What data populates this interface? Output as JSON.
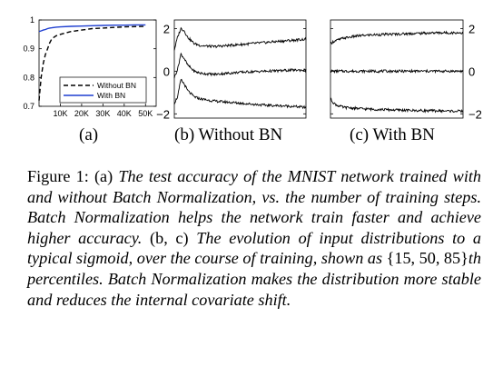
{
  "chart_data": [
    {
      "type": "line",
      "subcaption": "(a)",
      "x": [
        0,
        1000,
        2000,
        3000,
        4000,
        5000,
        6000,
        8000,
        10000,
        15000,
        20000,
        25000,
        30000,
        35000,
        40000,
        45000,
        50000
      ],
      "series": [
        {
          "name": "Without BN",
          "style": "dashed",
          "color": "#000000",
          "values": [
            0.72,
            0.8,
            0.85,
            0.88,
            0.9,
            0.92,
            0.935,
            0.945,
            0.95,
            0.96,
            0.965,
            0.97,
            0.972,
            0.974,
            0.976,
            0.977,
            0.978
          ]
        },
        {
          "name": "With BN",
          "style": "solid",
          "color": "#1f3fd0",
          "values": [
            0.96,
            0.962,
            0.965,
            0.967,
            0.97,
            0.972,
            0.973,
            0.975,
            0.976,
            0.978,
            0.979,
            0.98,
            0.981,
            0.982,
            0.982,
            0.983,
            0.983
          ]
        }
      ],
      "xlim": [
        0,
        55000
      ],
      "ylim": [
        0.7,
        1.0
      ],
      "xticks": [
        10000,
        20000,
        30000,
        40000,
        50000
      ],
      "xtick_labels": [
        "10K",
        "20K",
        "30K",
        "40K",
        "50K"
      ],
      "yticks": [
        0.7,
        0.8,
        0.9,
        1.0
      ],
      "ytick_labels": [
        "0.7",
        "0.8",
        "0.9",
        "1"
      ],
      "legend_position": "bottom-right"
    },
    {
      "type": "line",
      "subcaption": "(b) Without BN",
      "x": [
        0,
        0.5,
        1,
        1.5,
        2,
        3,
        4,
        6,
        8,
        10,
        12,
        14,
        16,
        18,
        20
      ],
      "series": [
        {
          "percentile": "85th",
          "values": [
            1.0,
            1.6,
            2.0,
            1.9,
            1.6,
            1.3,
            1.2,
            1.15,
            1.2,
            1.25,
            1.3,
            1.35,
            1.4,
            1.45,
            1.5
          ]
        },
        {
          "percentile": "50th",
          "values": [
            -0.3,
            0.1,
            0.8,
            0.6,
            0.3,
            0.0,
            -0.1,
            -0.15,
            -0.1,
            -0.05,
            -0.02,
            0.0,
            0.02,
            0.05,
            0.05
          ]
        },
        {
          "percentile": "15th",
          "values": [
            -1.5,
            -1.2,
            -0.4,
            -0.6,
            -0.9,
            -1.2,
            -1.3,
            -1.4,
            -1.45,
            -1.5,
            -1.55,
            -1.6,
            -1.62,
            -1.65,
            -1.7
          ]
        }
      ],
      "xlim": [
        0,
        20
      ],
      "ylim": [
        -2.2,
        2.4
      ],
      "yticks": [
        -2,
        0,
        2
      ],
      "ytick_labels": [
        "−2",
        "0",
        "2"
      ],
      "ytick_side": "left"
    },
    {
      "type": "line",
      "subcaption": "(c) With BN",
      "x": [
        0,
        0.5,
        1,
        1.5,
        2,
        3,
        4,
        6,
        8,
        10,
        12,
        14,
        16,
        18,
        20
      ],
      "series": [
        {
          "percentile": "85th",
          "values": [
            1.3,
            1.4,
            1.45,
            1.5,
            1.55,
            1.6,
            1.65,
            1.7,
            1.72,
            1.74,
            1.76,
            1.78,
            1.8,
            1.8,
            1.8
          ]
        },
        {
          "percentile": "50th",
          "values": [
            0.0,
            0.0,
            0.0,
            0.0,
            0.0,
            0.0,
            0.0,
            0.0,
            0.0,
            0.0,
            0.0,
            0.0,
            0.0,
            0.0,
            0.0
          ]
        },
        {
          "percentile": "15th",
          "values": [
            -1.3,
            -1.5,
            -1.6,
            -1.65,
            -1.7,
            -1.72,
            -1.75,
            -1.78,
            -1.8,
            -1.82,
            -1.84,
            -1.85,
            -1.86,
            -1.87,
            -1.88
          ]
        }
      ],
      "xlim": [
        0,
        20
      ],
      "ylim": [
        -2.2,
        2.4
      ],
      "yticks": [
        -2,
        0,
        2
      ],
      "ytick_labels": [
        "−2",
        "0",
        "2"
      ],
      "ytick_side": "right"
    }
  ],
  "caption": {
    "label": "Figure 1:",
    "p1": "(a)",
    "e1": "The test accuracy of the MNIST network trained with and without Batch Normalization, vs. the number of training steps. Batch Normalization helps the network train faster and achieve higher accuracy.",
    "p2": "(b, c)",
    "e2": "The evolution of input distributions to a typical sigmoid, over the course of training, shown as",
    "p3": "{15, 50, 85}",
    "e3": "th percentiles. Batch Normalization makes the distribution more stable and reduces the internal covariate shift."
  }
}
